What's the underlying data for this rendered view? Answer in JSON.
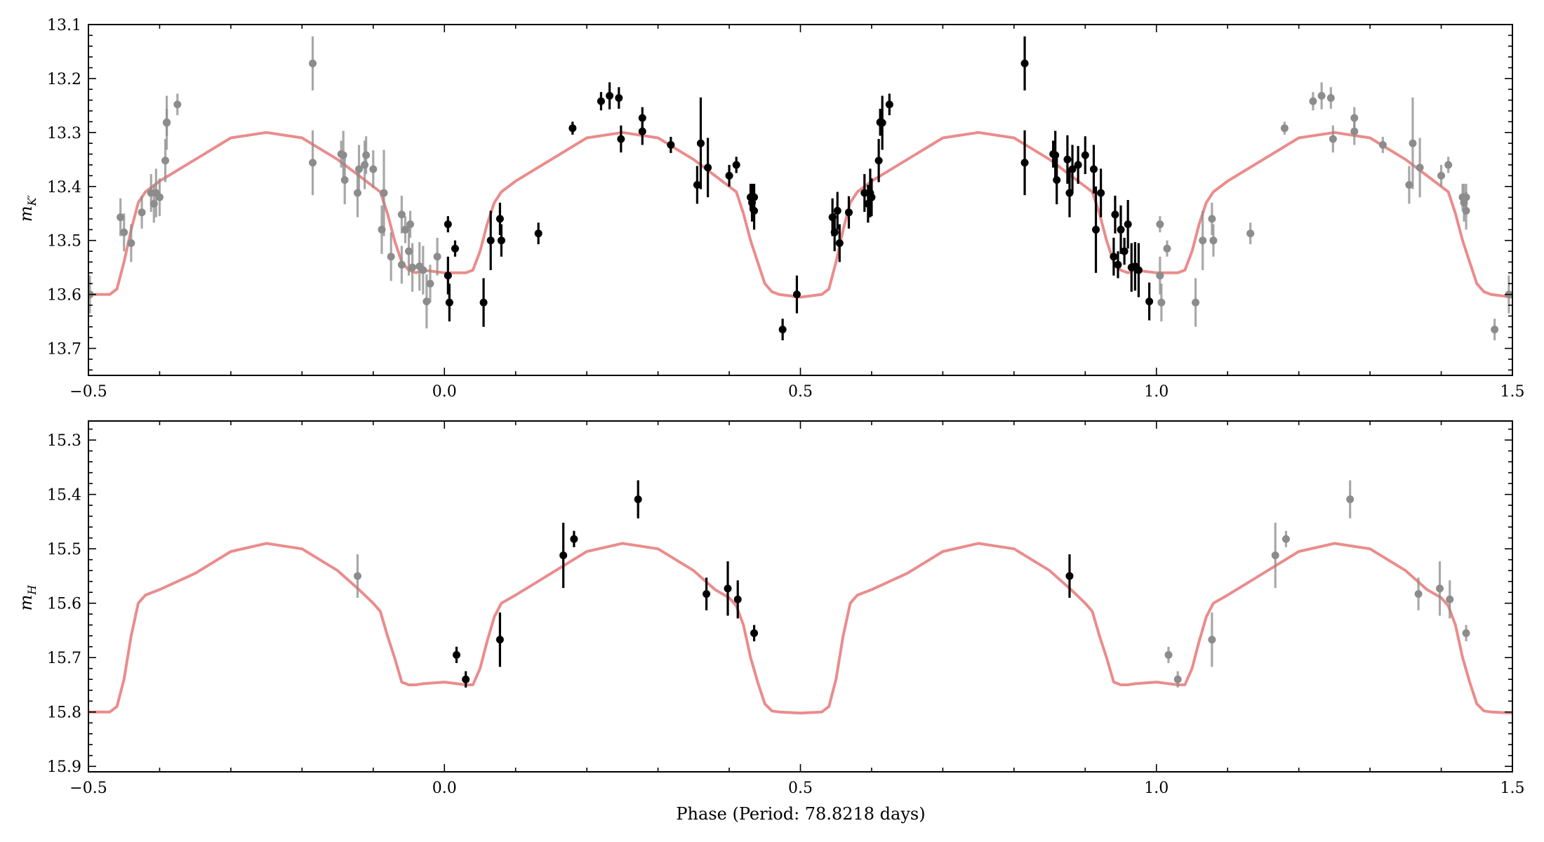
{
  "figure": {
    "xlabel": "Phase (Period: 78.8218 days)"
  },
  "chart_data": [
    {
      "type": "scatter",
      "panel": "top",
      "ylabel": "m",
      "ylabel_subscript": "K′",
      "xlim": [
        -0.5,
        1.5
      ],
      "ylim": [
        13.75,
        13.1
      ],
      "inverted_y": true,
      "xticks": [
        -0.5,
        0.0,
        0.5,
        1.0,
        1.5
      ],
      "xtick_labels": [
        "−0.5",
        "0.0",
        "0.5",
        "1.0",
        "1.5"
      ],
      "yticks": [
        13.1,
        13.2,
        13.3,
        13.4,
        13.5,
        13.6,
        13.7
      ],
      "ytick_labels": [
        "13.1",
        "13.2",
        "13.3",
        "13.4",
        "13.5",
        "13.6",
        "13.7"
      ],
      "model_color": "#e88080",
      "primary_color": "#000000",
      "repeat_color": "#8c8c8c",
      "model": {
        "x": [
          -0.5,
          -0.47,
          -0.46,
          -0.45,
          -0.44,
          -0.43,
          -0.42,
          -0.4,
          -0.35,
          -0.3,
          -0.25,
          -0.2,
          -0.15,
          -0.12,
          -0.1,
          -0.09,
          -0.08,
          -0.07,
          -0.06,
          -0.05,
          -0.04,
          -0.03,
          0.0,
          0.03,
          0.04,
          0.05,
          0.06,
          0.07,
          0.08,
          0.1,
          0.15,
          0.2,
          0.25,
          0.3,
          0.35,
          0.38,
          0.4,
          0.41,
          0.42,
          0.43,
          0.44,
          0.45,
          0.46,
          0.47,
          0.5,
          0.53,
          0.54,
          0.55,
          0.56,
          0.57,
          0.58,
          0.6,
          0.65,
          0.7,
          0.75,
          0.8,
          0.85,
          0.88,
          0.9,
          0.91,
          0.92,
          0.93,
          0.94,
          0.95,
          0.96,
          0.97,
          1.0,
          1.03,
          1.04,
          1.05,
          1.06,
          1.07,
          1.08,
          1.1,
          1.15,
          1.2,
          1.25,
          1.3,
          1.35,
          1.38,
          1.4,
          1.41,
          1.42,
          1.43,
          1.44,
          1.45,
          1.46,
          1.47,
          1.5
        ],
        "y": [
          13.6,
          13.6,
          13.59,
          13.54,
          13.48,
          13.43,
          13.41,
          13.39,
          13.35,
          13.31,
          13.3,
          13.31,
          13.35,
          13.38,
          13.4,
          13.41,
          13.45,
          13.5,
          13.54,
          13.555,
          13.56,
          13.555,
          13.56,
          13.56,
          13.555,
          13.52,
          13.47,
          13.43,
          13.41,
          13.39,
          13.35,
          13.31,
          13.3,
          13.31,
          13.35,
          13.38,
          13.4,
          13.41,
          13.45,
          13.5,
          13.54,
          13.58,
          13.595,
          13.6,
          13.605,
          13.6,
          13.59,
          13.54,
          13.48,
          13.43,
          13.41,
          13.39,
          13.35,
          13.31,
          13.3,
          13.31,
          13.35,
          13.38,
          13.4,
          13.41,
          13.45,
          13.5,
          13.54,
          13.555,
          13.56,
          13.555,
          13.56,
          13.56,
          13.555,
          13.52,
          13.47,
          13.43,
          13.41,
          13.39,
          13.35,
          13.31,
          13.3,
          13.31,
          13.35,
          13.38,
          13.4,
          13.41,
          13.45,
          13.5,
          13.54,
          13.58,
          13.595,
          13.6,
          13.605
        ]
      },
      "series": [
        {
          "role": "primary",
          "x": [
            0.005,
            0.005,
            0.007,
            0.015,
            0.055,
            0.065,
            0.078,
            0.08,
            0.132,
            0.18,
            0.22,
            0.232,
            0.245,
            0.248,
            0.278,
            0.278,
            0.318,
            0.355,
            0.36,
            0.37,
            0.4,
            0.41,
            0.43,
            0.432,
            0.435,
            0.435,
            0.475,
            0.495,
            0.545,
            0.548,
            0.552,
            0.555,
            0.568,
            0.59,
            0.595,
            0.598,
            0.6,
            0.61,
            0.612,
            0.615,
            0.625,
            0.815,
            0.815,
            0.855,
            0.858,
            0.86,
            0.875,
            0.878,
            0.882,
            0.89,
            0.9,
            0.912,
            0.915,
            0.922,
            0.94,
            0.942,
            0.946,
            0.95,
            0.955,
            0.96,
            0.965,
            0.97,
            0.975,
            0.99
          ],
          "y": [
            13.47,
            13.565,
            13.615,
            13.515,
            13.615,
            13.5,
            13.46,
            13.5,
            13.487,
            13.292,
            13.242,
            13.232,
            13.236,
            13.312,
            13.273,
            13.298,
            13.323,
            13.397,
            13.32,
            13.365,
            13.38,
            13.36,
            13.42,
            13.43,
            13.42,
            13.445,
            13.665,
            13.6,
            13.457,
            13.485,
            13.445,
            13.505,
            13.448,
            13.412,
            13.432,
            13.412,
            13.42,
            13.352,
            13.281,
            13.282,
            13.248,
            13.172,
            13.356,
            13.34,
            13.342,
            13.388,
            13.35,
            13.412,
            13.368,
            13.36,
            13.342,
            13.368,
            13.48,
            13.412,
            13.53,
            13.452,
            13.545,
            13.48,
            13.52,
            13.47,
            13.55,
            13.548,
            13.555,
            13.613
          ],
          "err": [
            0.015,
            0.035,
            0.035,
            0.015,
            0.045,
            0.055,
            0.03,
            0.03,
            0.02,
            0.012,
            0.017,
            0.025,
            0.02,
            0.025,
            0.02,
            0.025,
            0.015,
            0.035,
            0.085,
            0.055,
            0.02,
            0.015,
            0.025,
            0.035,
            0.025,
            0.035,
            0.02,
            0.035,
            0.035,
            0.035,
            0.035,
            0.035,
            0.03,
            0.035,
            0.035,
            0.045,
            0.035,
            0.04,
            0.025,
            0.05,
            0.02,
            0.05,
            0.06,
            0.025,
            0.045,
            0.045,
            0.045,
            0.045,
            0.045,
            0.035,
            0.035,
            0.045,
            0.08,
            0.045,
            0.035,
            0.035,
            0.025,
            0.045,
            0.025,
            0.045,
            0.045,
            0.045,
            0.05,
            0.035
          ]
        },
        {
          "role": "repeat",
          "x": [
            -0.545,
            -0.498,
            -0.455,
            -0.45,
            -0.44,
            -0.425,
            -0.412,
            -0.408,
            -0.405,
            -0.4,
            -0.392,
            -0.39,
            -0.39,
            -0.375,
            -0.185,
            -0.185,
            -0.145,
            -0.142,
            -0.14,
            -0.122,
            -0.12,
            -0.112,
            -0.11,
            -0.1,
            -0.088,
            -0.085,
            -0.075,
            -0.06,
            -0.06,
            -0.055,
            -0.05,
            -0.048,
            -0.045,
            -0.035,
            -0.03,
            -0.025,
            -0.02,
            -0.01,
            1.005,
            1.005,
            1.007,
            1.015,
            1.055,
            1.065,
            1.078,
            1.08,
            1.132,
            1.18,
            1.22,
            1.232,
            1.245,
            1.248,
            1.278,
            1.278,
            1.318,
            1.355,
            1.36,
            1.37,
            1.4,
            1.41,
            1.43,
            1.432,
            1.435,
            1.435,
            1.475,
            1.495
          ],
          "y": [
            13.665,
            13.6,
            13.457,
            13.485,
            13.505,
            13.448,
            13.412,
            13.432,
            13.412,
            13.42,
            13.352,
            13.281,
            13.282,
            13.248,
            13.172,
            13.356,
            13.34,
            13.342,
            13.388,
            13.412,
            13.368,
            13.36,
            13.342,
            13.368,
            13.48,
            13.412,
            13.53,
            13.452,
            13.545,
            13.48,
            13.52,
            13.47,
            13.55,
            13.548,
            13.555,
            13.613,
            13.58,
            13.53,
            13.47,
            13.565,
            13.615,
            13.515,
            13.615,
            13.5,
            13.46,
            13.5,
            13.487,
            13.292,
            13.242,
            13.232,
            13.236,
            13.312,
            13.273,
            13.298,
            13.323,
            13.397,
            13.32,
            13.365,
            13.38,
            13.36,
            13.42,
            13.43,
            13.42,
            13.445,
            13.665,
            13.6
          ],
          "err": [
            0.02,
            0.035,
            0.035,
            0.035,
            0.035,
            0.03,
            0.035,
            0.035,
            0.045,
            0.035,
            0.04,
            0.025,
            0.05,
            0.02,
            0.05,
            0.06,
            0.025,
            0.045,
            0.045,
            0.045,
            0.045,
            0.045,
            0.035,
            0.035,
            0.045,
            0.08,
            0.045,
            0.035,
            0.035,
            0.025,
            0.045,
            0.025,
            0.045,
            0.045,
            0.045,
            0.05,
            0.035,
            0.035,
            0.015,
            0.035,
            0.035,
            0.015,
            0.045,
            0.055,
            0.03,
            0.03,
            0.02,
            0.012,
            0.017,
            0.025,
            0.02,
            0.025,
            0.02,
            0.025,
            0.015,
            0.035,
            0.085,
            0.055,
            0.02,
            0.015,
            0.025,
            0.035,
            0.025,
            0.035,
            0.02,
            0.035
          ]
        }
      ]
    },
    {
      "type": "scatter",
      "panel": "bottom",
      "ylabel": "m",
      "ylabel_subscript": "H",
      "xlabel": "Phase (Period: 78.8218 days)",
      "xlim": [
        -0.5,
        1.5
      ],
      "ylim": [
        15.91,
        15.265
      ],
      "inverted_y": true,
      "xticks": [
        -0.5,
        0.0,
        0.5,
        1.0,
        1.5
      ],
      "xtick_labels": [
        "−0.5",
        "0.0",
        "0.5",
        "1.0",
        "1.5"
      ],
      "yticks": [
        15.3,
        15.4,
        15.5,
        15.6,
        15.7,
        15.8,
        15.9
      ],
      "ytick_labels": [
        "15.3",
        "15.4",
        "15.5",
        "15.6",
        "15.7",
        "15.8",
        "15.9"
      ],
      "model_color": "#e88080",
      "primary_color": "#000000",
      "repeat_color": "#8c8c8c",
      "model": {
        "x": [
          -0.5,
          -0.47,
          -0.46,
          -0.45,
          -0.44,
          -0.43,
          -0.42,
          -0.4,
          -0.35,
          -0.3,
          -0.25,
          -0.2,
          -0.15,
          -0.12,
          -0.1,
          -0.09,
          -0.08,
          -0.07,
          -0.06,
          -0.05,
          -0.04,
          -0.03,
          0.0,
          0.03,
          0.04,
          0.05,
          0.06,
          0.07,
          0.08,
          0.1,
          0.15,
          0.2,
          0.25,
          0.3,
          0.35,
          0.38,
          0.4,
          0.41,
          0.42,
          0.43,
          0.44,
          0.45,
          0.46,
          0.47,
          0.5,
          0.53,
          0.54,
          0.55,
          0.56,
          0.57,
          0.58,
          0.6,
          0.65,
          0.7,
          0.75,
          0.8,
          0.85,
          0.88,
          0.9,
          0.91,
          0.92,
          0.93,
          0.94,
          0.95,
          0.96,
          0.97,
          1.0,
          1.03,
          1.04,
          1.05,
          1.06,
          1.07,
          1.08,
          1.1,
          1.15,
          1.2,
          1.25,
          1.3,
          1.35,
          1.38,
          1.4,
          1.41,
          1.42,
          1.43,
          1.44,
          1.45,
          1.46,
          1.47,
          1.5
        ],
        "y": [
          15.8,
          15.8,
          15.79,
          15.74,
          15.66,
          15.6,
          15.585,
          15.575,
          15.545,
          15.505,
          15.49,
          15.5,
          15.54,
          15.575,
          15.6,
          15.615,
          15.66,
          15.7,
          15.745,
          15.75,
          15.75,
          15.748,
          15.745,
          15.75,
          15.75,
          15.72,
          15.67,
          15.625,
          15.6,
          15.585,
          15.545,
          15.505,
          15.49,
          15.5,
          15.54,
          15.575,
          15.59,
          15.605,
          15.64,
          15.7,
          15.745,
          15.785,
          15.798,
          15.8,
          15.802,
          15.8,
          15.79,
          15.74,
          15.66,
          15.6,
          15.585,
          15.575,
          15.545,
          15.505,
          15.49,
          15.5,
          15.54,
          15.575,
          15.6,
          15.615,
          15.66,
          15.7,
          15.745,
          15.75,
          15.75,
          15.748,
          15.745,
          15.75,
          15.75,
          15.72,
          15.67,
          15.625,
          15.6,
          15.585,
          15.545,
          15.505,
          15.49,
          15.5,
          15.54,
          15.575,
          15.59,
          15.605,
          15.64,
          15.7,
          15.745,
          15.785,
          15.798,
          15.8,
          15.802
        ]
      },
      "series": [
        {
          "role": "primary",
          "x": [
            0.017,
            0.03,
            0.078,
            0.167,
            0.182,
            0.272,
            0.368,
            0.398,
            0.412,
            0.435,
            0.878
          ],
          "y": [
            15.695,
            15.74,
            15.667,
            15.512,
            15.482,
            15.409,
            15.583,
            15.573,
            15.593,
            15.655,
            15.55
          ],
          "err": [
            0.015,
            0.015,
            0.05,
            0.06,
            0.015,
            0.035,
            0.03,
            0.05,
            0.035,
            0.015,
            0.04
          ]
        },
        {
          "role": "repeat",
          "x": [
            -0.122,
            1.017,
            1.03,
            1.078,
            1.167,
            1.182,
            1.272,
            1.368,
            1.398,
            1.412,
            1.435
          ],
          "y": [
            15.55,
            15.695,
            15.74,
            15.667,
            15.512,
            15.482,
            15.409,
            15.583,
            15.573,
            15.593,
            15.655
          ],
          "err": [
            0.04,
            0.015,
            0.015,
            0.05,
            0.06,
            0.015,
            0.035,
            0.03,
            0.05,
            0.035,
            0.015
          ]
        }
      ]
    }
  ]
}
